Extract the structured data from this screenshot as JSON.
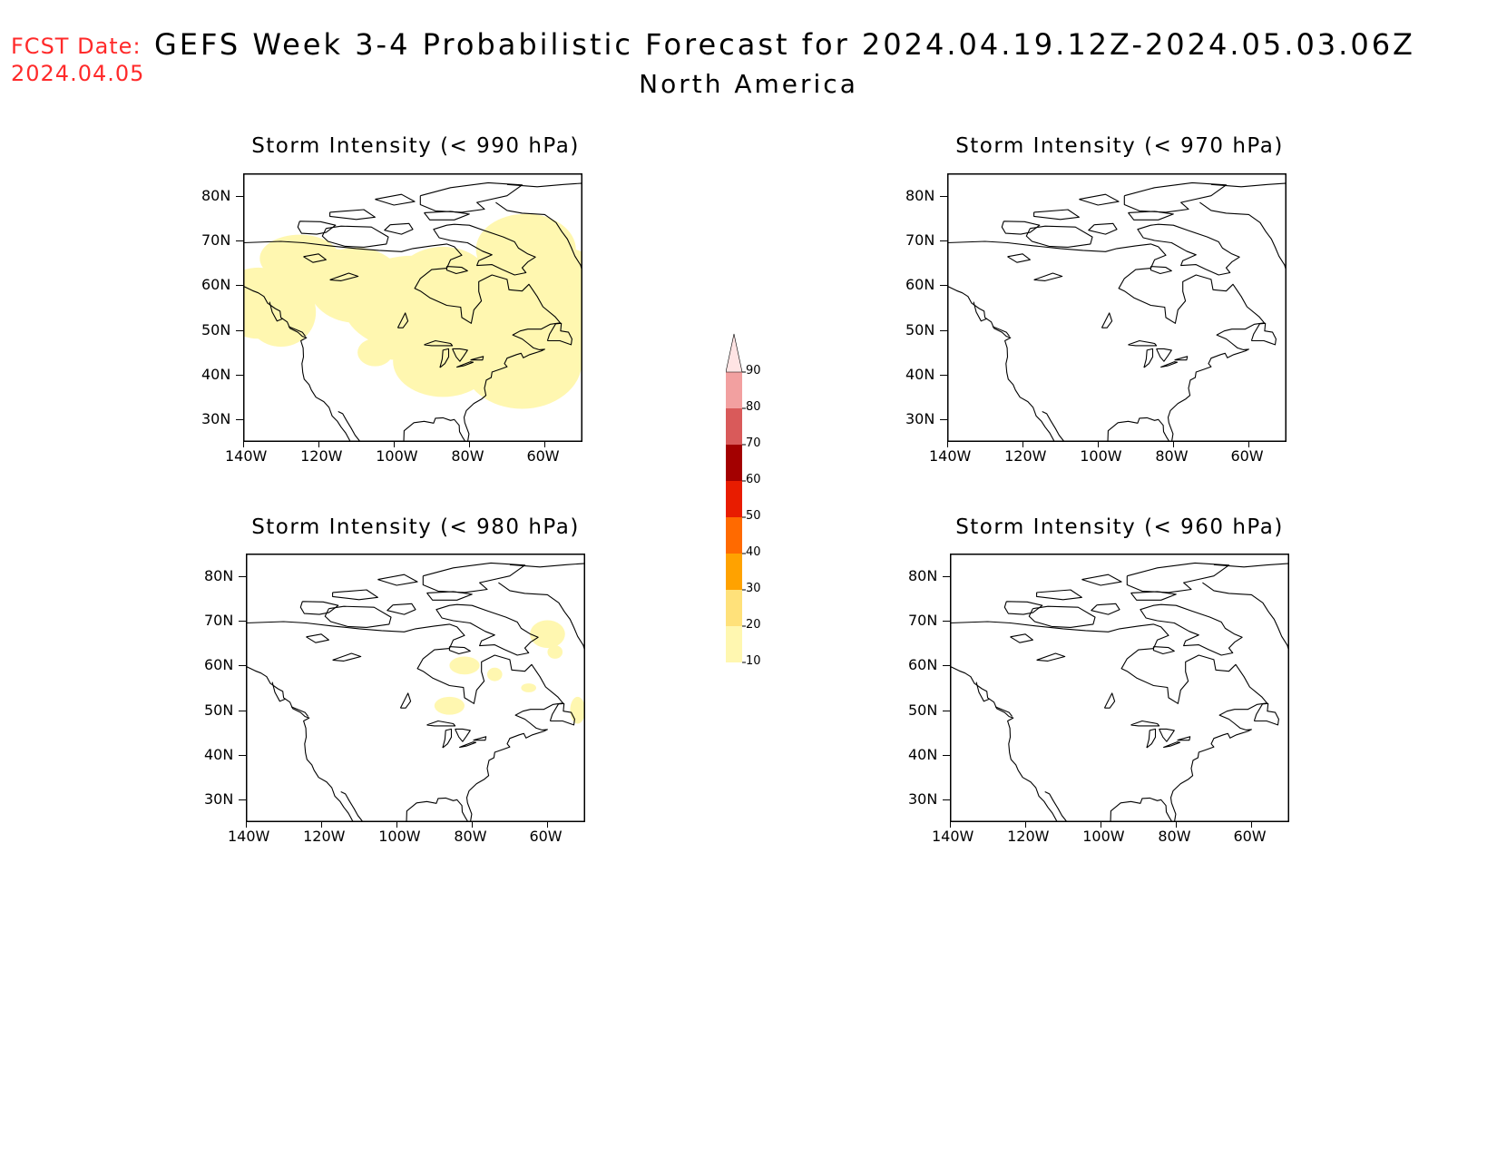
{
  "header": {
    "fcst_label": "FCST Date:",
    "fcst_date": "2024.04.05",
    "title": "GEFS Week 3-4 Probabilistic Forecast for 2024.04.19.12Z-2024.05.03.06Z",
    "region": "North America"
  },
  "colors": {
    "fcst_text": "#ff2a2a",
    "levels": [
      "#fff7b0",
      "#ffe17a",
      "#ffa200",
      "#ff6a00",
      "#e81c00",
      "#a30000",
      "#d95a5a",
      "#f2a0a0",
      "#ffe4e4"
    ]
  },
  "colorbar": {
    "labels": [
      "10",
      "20",
      "30",
      "40",
      "50",
      "60",
      "70",
      "80",
      "90"
    ]
  },
  "axes": {
    "lon_ticks": [
      "140W",
      "120W",
      "100W",
      "80W",
      "60W"
    ],
    "lat_ticks": [
      "80N",
      "70N",
      "60N",
      "50N",
      "40N",
      "30N"
    ]
  },
  "panels": [
    {
      "id": "p990",
      "title": "Storm Intensity (< 990 hPa)",
      "has_data": true
    },
    {
      "id": "p970",
      "title": "Storm Intensity (< 970 hPa)",
      "has_data": false
    },
    {
      "id": "p980",
      "title": "Storm Intensity (< 980 hPa)",
      "has_data": true
    },
    {
      "id": "p960",
      "title": "Storm Intensity (< 960 hPa)",
      "has_data": false
    }
  ]
}
